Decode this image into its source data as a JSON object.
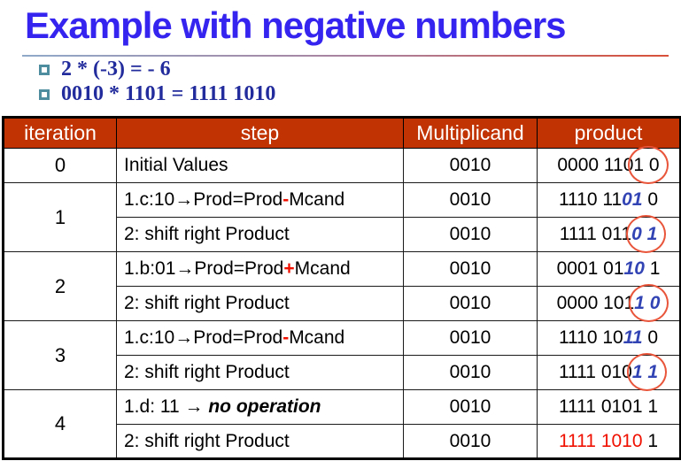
{
  "title": "Example with negative numbers",
  "bullets": [
    "2 * (-3) = - 6",
    "0010 * 1101 = 1111 1010"
  ],
  "colors": {
    "title_blue": "#3524f0",
    "bullet_navy": "#232c9c",
    "header_bg": "#c13303",
    "highlight_blue": "#3243b4",
    "highlight_red": "#f01000",
    "circle_stroke": "#e8553a"
  },
  "table": {
    "headers": [
      "iteration",
      "step",
      "Multiplicand",
      "product"
    ],
    "rows": [
      {
        "iteration": "0",
        "rowspan": 1,
        "step": [
          {
            "t": "Initial Values"
          }
        ],
        "multiplicand": "0010",
        "product": [
          {
            "t": "0000 110"
          },
          {
            "t": "1 0",
            "circled": true
          }
        ]
      },
      {
        "iteration": "1",
        "rowspan": 2,
        "step": [
          {
            "t": "1.c:10→Prod=Prod"
          },
          {
            "t": "-",
            "red": true
          },
          {
            "t": "Mcand"
          }
        ],
        "multiplicand": "0010",
        "product": [
          {
            "t": "1110 11"
          },
          {
            "t": "01",
            "blue": true
          },
          {
            "t": " 0"
          }
        ]
      },
      {
        "step": [
          {
            "t": "2: shift right Product"
          }
        ],
        "multiplicand": "0010",
        "product": [
          {
            "t": "1111 011"
          },
          {
            "t": "0 1",
            "blue": true,
            "circled": true
          }
        ]
      },
      {
        "iteration": "2",
        "rowspan": 2,
        "step": [
          {
            "t": "1.b:01→Prod=Prod"
          },
          {
            "t": "+",
            "red": true
          },
          {
            "t": "Mcand"
          }
        ],
        "multiplicand": "0010",
        "product": [
          {
            "t": "0001 01"
          },
          {
            "t": "10",
            "blue": true
          },
          {
            "t": " 1"
          }
        ]
      },
      {
        "step": [
          {
            "t": "2: shift right Product"
          }
        ],
        "multiplicand": "0010",
        "product": [
          {
            "t": "0000 101"
          },
          {
            "t": "1 0",
            "blue": true,
            "circled": true
          }
        ]
      },
      {
        "iteration": "3",
        "rowspan": 2,
        "step": [
          {
            "t": "1.c:10→Prod=Prod"
          },
          {
            "t": "-",
            "red": true
          },
          {
            "t": "Mcand"
          }
        ],
        "multiplicand": "0010",
        "product": [
          {
            "t": "1110 10"
          },
          {
            "t": "11",
            "blue": true
          },
          {
            "t": " 0"
          }
        ]
      },
      {
        "step": [
          {
            "t": "2: shift right Product"
          }
        ],
        "multiplicand": "0010",
        "product": [
          {
            "t": "1111 010"
          },
          {
            "t": "1 1",
            "blue": true,
            "circled": true
          }
        ]
      },
      {
        "iteration": "4",
        "rowspan": 2,
        "step": [
          {
            "t": "1.d: 11 → "
          },
          {
            "t": "no operation",
            "bold_italic": true
          }
        ],
        "multiplicand": "0010",
        "product": [
          {
            "t": "1111 0101 1"
          }
        ]
      },
      {
        "step": [
          {
            "t": "2: shift right Product"
          }
        ],
        "multiplicand": "0010",
        "product": [
          {
            "t": "1111 1010",
            "red_text": true
          },
          {
            "t": " 1"
          }
        ]
      }
    ]
  }
}
